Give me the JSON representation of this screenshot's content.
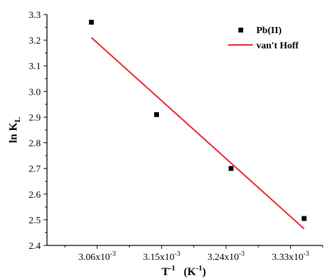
{
  "chart_data": {
    "type": "scatter",
    "title": "",
    "xlabel": {
      "main": "T",
      "sup": "-1",
      "unit_open": "(K",
      "unit_sup": "-1",
      "unit_close": ")"
    },
    "ylabel": {
      "main": "ln K",
      "sub": "L"
    },
    "xlim": [
      0.00299,
      0.003375
    ],
    "ylim": [
      2.4,
      3.3
    ],
    "x_ticks": [
      {
        "value": 0.00306,
        "base": "3.06x10",
        "exp": "-3"
      },
      {
        "value": 0.00315,
        "base": "3.15x10",
        "exp": "-3"
      },
      {
        "value": 0.00324,
        "base": "3.24x10",
        "exp": "-3"
      },
      {
        "value": 0.00333,
        "base": "3.33x10",
        "exp": "-3"
      }
    ],
    "y_ticks": [
      "2.4",
      "2.5",
      "2.6",
      "2.7",
      "2.8",
      "2.9",
      "3.0",
      "3.1",
      "3.2",
      "3.3"
    ],
    "series": [
      {
        "name": "Pb(II)",
        "type": "scatter",
        "color": "#000000",
        "marker": "square",
        "points": [
          {
            "x": 0.003052,
            "y": 3.27
          },
          {
            "x": 0.003143,
            "y": 2.91
          },
          {
            "x": 0.003247,
            "y": 2.7
          },
          {
            "x": 0.003349,
            "y": 2.505
          }
        ]
      },
      {
        "name": "van't Hoff",
        "type": "line",
        "color": "#e8242a",
        "points": [
          {
            "x": 0.003052,
            "y": 3.21
          },
          {
            "x": 0.003349,
            "y": 2.465
          }
        ]
      }
    ],
    "legend": {
      "position": "top-right"
    },
    "grid": false
  }
}
